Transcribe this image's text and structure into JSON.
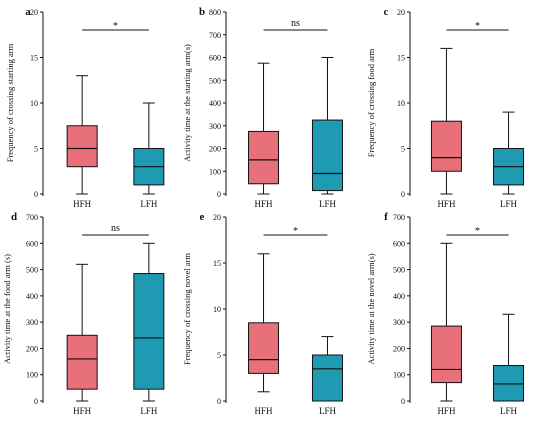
{
  "colors": {
    "HFH": "#e8707a",
    "LFH": "#1e9ab3",
    "line": "#111111"
  },
  "chart_data": [
    {
      "type": "box",
      "panel": "a",
      "ylabel": "Frequency of crossing starting arm",
      "ylim": [
        0,
        20
      ],
      "yticks": [
        0,
        5,
        10,
        15,
        20
      ],
      "categories": [
        "HFH",
        "LFH"
      ],
      "boxes": [
        {
          "name": "HFH",
          "min": 0,
          "q1": 3,
          "median": 5,
          "q3": 7.5,
          "max": 13
        },
        {
          "name": "LFH",
          "min": 0,
          "q1": 1,
          "median": 3,
          "q3": 5,
          "max": 10
        }
      ],
      "significance": "*"
    },
    {
      "type": "box",
      "panel": "b",
      "ylabel": "Activity time at the starting arm(s)",
      "ylim": [
        0,
        800
      ],
      "yticks": [
        0,
        100,
        200,
        300,
        400,
        500,
        600,
        700,
        800
      ],
      "categories": [
        "HFH",
        "LFH"
      ],
      "boxes": [
        {
          "name": "HFH",
          "min": 0,
          "q1": 45,
          "median": 150,
          "q3": 275,
          "max": 575
        },
        {
          "name": "LFH",
          "min": 0,
          "q1": 15,
          "median": 90,
          "q3": 325,
          "max": 600
        }
      ],
      "significance": "ns"
    },
    {
      "type": "box",
      "panel": "c",
      "ylabel": "Frequency of crossing food arm",
      "ylim": [
        0,
        20
      ],
      "yticks": [
        0,
        5,
        10,
        15,
        20
      ],
      "categories": [
        "HFH",
        "LFH"
      ],
      "boxes": [
        {
          "name": "HFH",
          "min": 0,
          "q1": 2.5,
          "median": 4,
          "q3": 8,
          "max": 16
        },
        {
          "name": "LFH",
          "min": 0,
          "q1": 1,
          "median": 3,
          "q3": 5,
          "max": 9
        }
      ],
      "significance": "*"
    },
    {
      "type": "box",
      "panel": "d",
      "ylabel": "Activity time at the food arm (s)",
      "ylim": [
        0,
        700
      ],
      "yticks": [
        0,
        100,
        200,
        300,
        400,
        500,
        600,
        700
      ],
      "categories": [
        "HFH",
        "LFH"
      ],
      "boxes": [
        {
          "name": "HFH",
          "min": 0,
          "q1": 45,
          "median": 160,
          "q3": 250,
          "max": 520
        },
        {
          "name": "LFH",
          "min": 0,
          "q1": 45,
          "median": 240,
          "q3": 485,
          "max": 600
        }
      ],
      "significance": "ns"
    },
    {
      "type": "box",
      "panel": "e",
      "ylabel": "Frequency of crossing novel arm",
      "ylim": [
        0,
        20
      ],
      "yticks": [
        0,
        5,
        10,
        15,
        20
      ],
      "categories": [
        "HFH",
        "LFH"
      ],
      "boxes": [
        {
          "name": "HFH",
          "min": 1,
          "q1": 3,
          "median": 4.5,
          "q3": 8.5,
          "max": 16
        },
        {
          "name": "LFH",
          "min": 0,
          "q1": 0,
          "median": 3.5,
          "q3": 5,
          "max": 7
        }
      ],
      "significance": "*"
    },
    {
      "type": "box",
      "panel": "f",
      "ylabel": "Activity time at the novel arm(s)",
      "ylim": [
        0,
        700
      ],
      "yticks": [
        0,
        100,
        200,
        300,
        400,
        500,
        600,
        700
      ],
      "categories": [
        "HFH",
        "LFH"
      ],
      "boxes": [
        {
          "name": "HFH",
          "min": 0,
          "q1": 70,
          "median": 120,
          "q3": 285,
          "max": 600
        },
        {
          "name": "LFH",
          "min": 0,
          "q1": 0,
          "median": 65,
          "q3": 135,
          "max": 330
        }
      ],
      "significance": "*"
    }
  ]
}
